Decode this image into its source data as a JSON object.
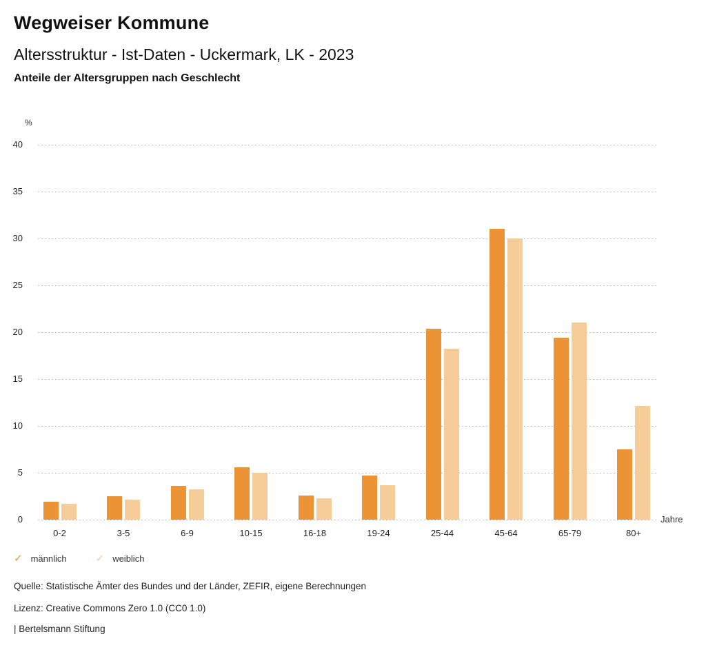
{
  "header": {
    "title": "Wegweiser Kommune",
    "subtitle": "Altersstruktur - Ist-Daten - Uckermark, LK - 2023",
    "heading": "Anteile der Altersgruppen nach Geschlecht"
  },
  "chart_data": {
    "type": "bar",
    "title": "Anteile der Altersgruppen nach Geschlecht",
    "y_unit_label": "%",
    "x_unit_label": "Jahre",
    "categories": [
      "0-2",
      "3-5",
      "6-9",
      "10-15",
      "16-18",
      "19-24",
      "25-44",
      "45-64",
      "65-79",
      "80+"
    ],
    "series": [
      {
        "name": "männlich",
        "color": "#EC9435",
        "values": [
          1.9,
          2.5,
          3.6,
          5.6,
          2.6,
          4.7,
          20.4,
          31.0,
          19.4,
          7.5
        ]
      },
      {
        "name": "weiblich",
        "color": "#F6CC98",
        "values": [
          1.7,
          2.1,
          3.2,
          5.0,
          2.3,
          3.7,
          18.2,
          30.0,
          21.0,
          12.1
        ]
      }
    ],
    "ylim": [
      0,
      40
    ],
    "ytick_step": 5,
    "grid": "horizontal-dotted",
    "legend_position": "bottom-left"
  },
  "legend": {
    "items": [
      {
        "label": "männlich",
        "check_icon": "✓",
        "color": "#EC9435"
      },
      {
        "label": "weiblich",
        "check_icon": "✓",
        "color": "#F6CC98"
      }
    ]
  },
  "footer": {
    "source": "Quelle: Statistische Ämter des Bundes und der Länder, ZEFIR, eigene Berechnungen",
    "license": "Lizenz: Creative Commons Zero 1.0 (CC0 1.0)",
    "attribution": "| Bertelsmann Stiftung"
  }
}
